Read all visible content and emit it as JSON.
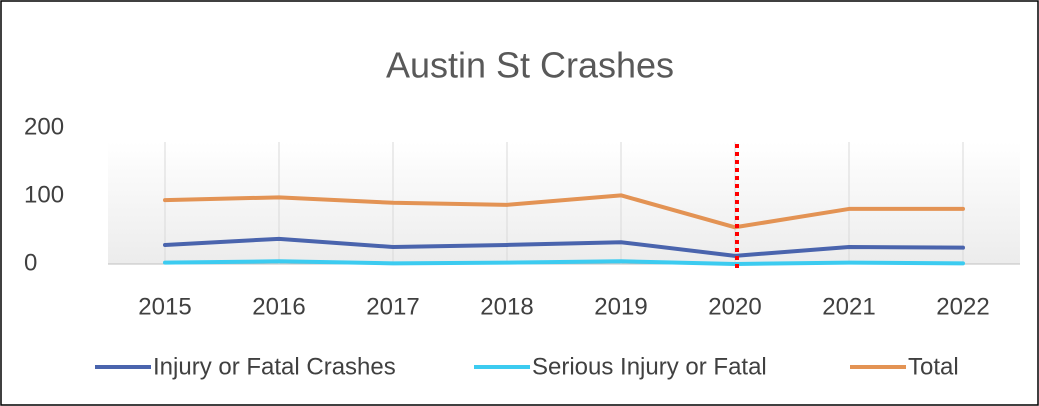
{
  "chart_data": {
    "type": "line",
    "title": "Austin St Crashes",
    "categories": [
      "2015",
      "2016",
      "2017",
      "2018",
      "2019",
      "2020",
      "2021",
      "2022"
    ],
    "series": [
      {
        "name": "Injury or Fatal Crashes",
        "color": "#4a64ad",
        "values": [
          28,
          37,
          25,
          28,
          32,
          12,
          25,
          24
        ]
      },
      {
        "name": "Serious Injury or Fatal",
        "color": "#3ccbf0",
        "values": [
          2,
          4,
          1,
          2,
          4,
          0,
          2,
          1
        ]
      },
      {
        "name": "Total",
        "color": "#e39354",
        "values": [
          94,
          98,
          90,
          87,
          101,
          54,
          81,
          81
        ]
      }
    ],
    "ylim": [
      0,
      200
    ],
    "yticks": [
      0,
      100,
      200
    ],
    "grid": true,
    "legend": "bottom"
  }
}
